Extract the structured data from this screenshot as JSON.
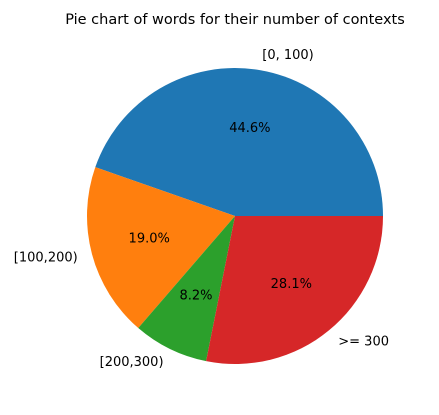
{
  "chart_data": {
    "type": "pie",
    "title": "Pie chart of words for their number of contexts",
    "categories": [
      "[0, 100)",
      "[100,200)",
      "[200,300)",
      ">= 300"
    ],
    "values": [
      44.6,
      19.0,
      8.2,
      28.1
    ],
    "percent_labels": [
      "44.6%",
      "19.0%",
      "8.2%",
      "28.1%"
    ],
    "colors": [
      "#1f77b4",
      "#ff7f0e",
      "#2ca02c",
      "#d62728"
    ],
    "start_angle_deg": 0,
    "direction": "counterclockwise",
    "legend": "none"
  }
}
